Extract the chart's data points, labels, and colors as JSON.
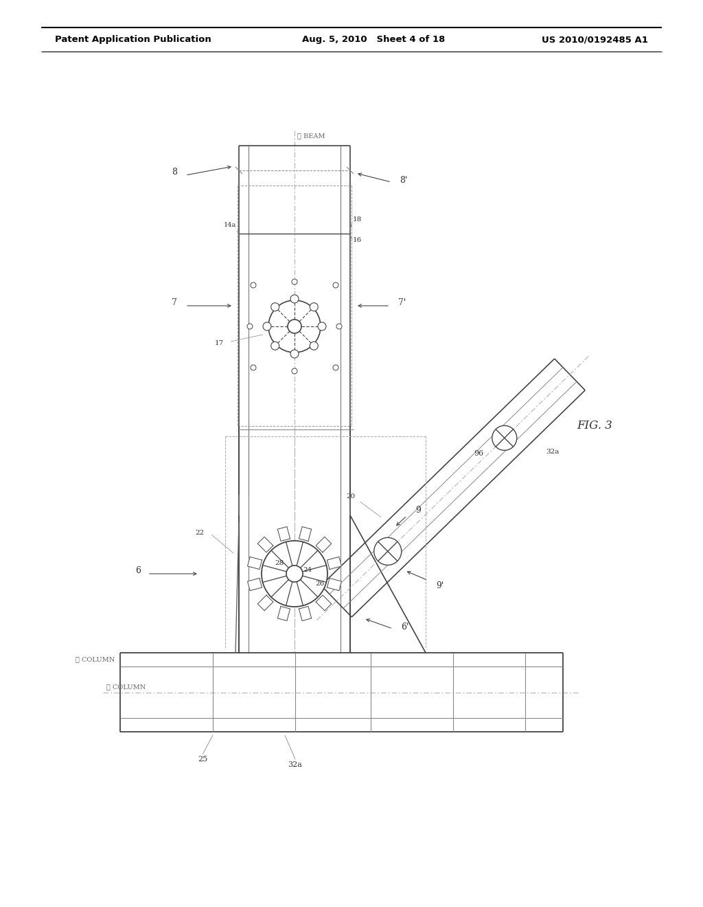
{
  "title": "FIG. 3",
  "header_left": "Patent Application Publication",
  "header_mid": "Aug. 5, 2010   Sheet 4 of 18",
  "header_right": "US 2010/0192485 A1",
  "bg_color": "#ffffff",
  "line_color": "#444444",
  "dim_color": "#777777",
  "text_color": "#333333",
  "cl_color": "#aaaaaa"
}
